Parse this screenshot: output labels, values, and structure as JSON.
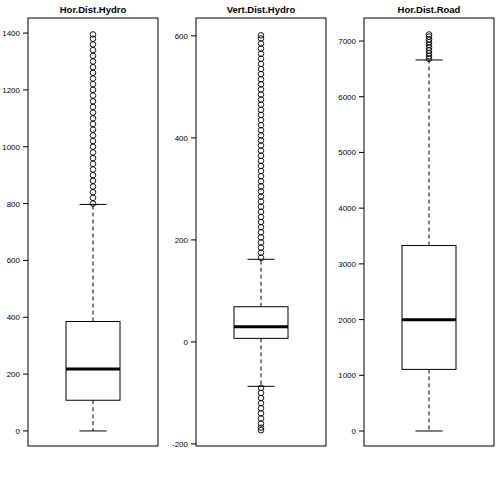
{
  "chart_data": [
    {
      "type": "box",
      "title": "Hor.Dist.Hydro",
      "color": "#000000",
      "ylim": [
        -53,
        1453
      ],
      "yticks": [
        0,
        200,
        400,
        600,
        800,
        1000,
        1200,
        1400
      ],
      "stats": [
        0,
        108,
        218,
        385,
        797
      ],
      "outliers": [
        800,
        820,
        840,
        860,
        880,
        900,
        920,
        940,
        960,
        980,
        1000,
        1020,
        1040,
        1060,
        1080,
        1100,
        1120,
        1140,
        1160,
        1180,
        1200,
        1220,
        1240,
        1260,
        1280,
        1300,
        1320,
        1340,
        1360,
        1380,
        1395
      ]
    },
    {
      "type": "box",
      "title": "Vert.Dist.Hydro",
      "color": "#000000",
      "ylim": [
        -204,
        635
      ],
      "yticks": [
        -200,
        0,
        200,
        400,
        600
      ],
      "stats": [
        -87,
        7,
        30,
        69,
        162
      ],
      "outliers": [
        165,
        175,
        185,
        195,
        205,
        215,
        225,
        235,
        245,
        255,
        265,
        275,
        285,
        295,
        305,
        315,
        325,
        335,
        345,
        355,
        365,
        375,
        385,
        395,
        405,
        415,
        425,
        435,
        445,
        455,
        465,
        475,
        485,
        495,
        505,
        515,
        525,
        535,
        545,
        555,
        565,
        575,
        585,
        595,
        601,
        -90,
        -100,
        -110,
        -120,
        -130,
        -140,
        -150,
        -160,
        -168,
        -173
      ]
    },
    {
      "type": "box",
      "title": "Hor.Dist.Road",
      "color": "#000000",
      "ylim": [
        -269,
        7413
      ],
      "yticks": [
        0,
        1000,
        2000,
        3000,
        4000,
        5000,
        6000,
        7000
      ],
      "stats": [
        0,
        1106,
        1998,
        3329,
        6660
      ],
      "outliers": [
        6680,
        6730,
        6780,
        6830,
        6880,
        6930,
        6980,
        7030,
        7080,
        7117
      ]
    }
  ]
}
